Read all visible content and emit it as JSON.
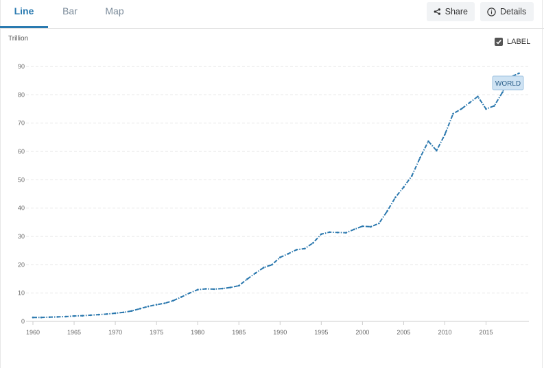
{
  "tabs": [
    {
      "label": "Line",
      "active": true
    },
    {
      "label": "Bar",
      "active": false
    },
    {
      "label": "Map",
      "active": false
    }
  ],
  "buttons": {
    "share": "Share",
    "details": "Details"
  },
  "label_toggle": {
    "text": "LABEL",
    "checked": true
  },
  "colors": {
    "accent": "#2a7ab0",
    "line": "#2b78ae",
    "grid": "#e6e6e6",
    "tag_bg": "#cfe3f3"
  },
  "chart_data": {
    "type": "line",
    "ylabel": "Trillion",
    "ylim": [
      0,
      95
    ],
    "yticks": [
      0,
      10,
      20,
      30,
      40,
      50,
      60,
      70,
      80,
      90
    ],
    "xlim": [
      1960,
      2020
    ],
    "xticks": [
      1960,
      1965,
      1970,
      1975,
      1980,
      1985,
      1990,
      1995,
      2000,
      2005,
      2010,
      2015
    ],
    "grid": true,
    "series": [
      {
        "name": "WORLD",
        "x": [
          1960,
          1961,
          1962,
          1963,
          1964,
          1965,
          1966,
          1967,
          1968,
          1969,
          1970,
          1971,
          1972,
          1973,
          1974,
          1975,
          1976,
          1977,
          1978,
          1979,
          1980,
          1981,
          1982,
          1983,
          1984,
          1985,
          1986,
          1987,
          1988,
          1989,
          1990,
          1991,
          1992,
          1993,
          1994,
          1995,
          1996,
          1997,
          1998,
          1999,
          2000,
          2001,
          2002,
          2003,
          2004,
          2005,
          2006,
          2007,
          2008,
          2009,
          2010,
          2011,
          2012,
          2013,
          2014,
          2015,
          2016,
          2017,
          2018,
          2019
        ],
        "values": [
          1.4,
          1.4,
          1.5,
          1.6,
          1.7,
          1.9,
          2.0,
          2.2,
          2.4,
          2.6,
          2.9,
          3.2,
          3.7,
          4.5,
          5.3,
          5.9,
          6.4,
          7.3,
          8.6,
          10.0,
          11.2,
          11.5,
          11.4,
          11.6,
          12.0,
          12.6,
          14.9,
          17.0,
          19.0,
          20.0,
          22.6,
          23.9,
          25.3,
          25.7,
          27.7,
          30.8,
          31.5,
          31.4,
          31.3,
          32.5,
          33.6,
          33.4,
          34.6,
          38.9,
          43.8,
          47.4,
          51.4,
          57.8,
          63.6,
          60.3,
          66.0,
          73.3,
          75.0,
          77.2,
          79.4,
          75.0,
          76.1,
          80.9,
          86.3,
          87.6
        ]
      }
    ],
    "annotation": "WORLD"
  }
}
